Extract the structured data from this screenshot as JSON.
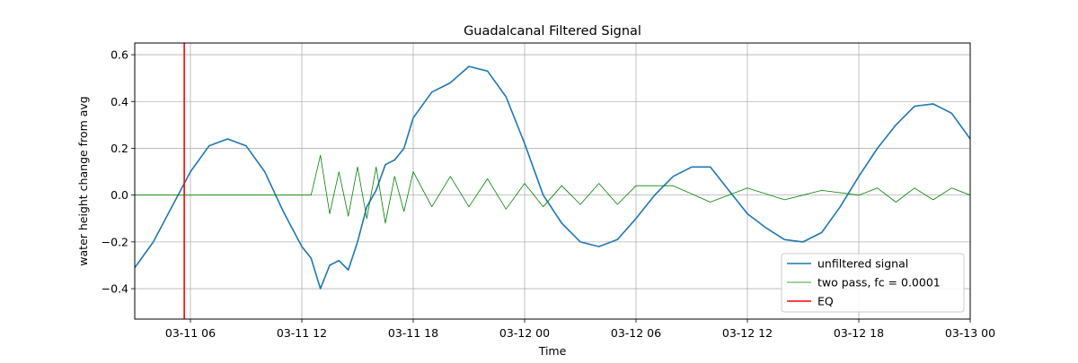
{
  "chart_data": {
    "type": "line",
    "title": "Guadalcanal Filtered Signal",
    "xlabel": "Time",
    "ylabel": "water height change from avg",
    "xlim": [
      "2013-03-11 03:00",
      "2013-03-13 00:00"
    ],
    "ylim": [
      -0.53,
      0.65
    ],
    "x_ticks": [
      "2013-03-11 06:00",
      "2013-03-11 12:00",
      "2013-03-11 18:00",
      "2013-03-12 00:00",
      "2013-03-12 06:00",
      "2013-03-12 12:00",
      "2013-03-12 18:00",
      "2013-03-13 00:00"
    ],
    "x_tick_labels": [
      "03-11 06",
      "03-11 12",
      "03-11 18",
      "03-12 00",
      "03-12 06",
      "03-12 12",
      "03-12 18",
      "03-13 00"
    ],
    "y_ticks": [
      -0.4,
      -0.2,
      0.0,
      0.2,
      0.4,
      0.6
    ],
    "y_tick_labels": [
      "−0.4",
      "−0.2",
      "0.0",
      "0.2",
      "0.4",
      "0.6"
    ],
    "grid": true,
    "legend_position": "lower-right",
    "series": [
      {
        "name": "unfiltered signal",
        "color": "#1f77b4",
        "x": [
          "2013-03-11 03:00",
          "2013-03-11 04:00",
          "2013-03-11 05:00",
          "2013-03-11 06:00",
          "2013-03-11 07:00",
          "2013-03-11 08:00",
          "2013-03-11 09:00",
          "2013-03-11 10:00",
          "2013-03-11 11:00",
          "2013-03-11 12:00",
          "2013-03-11 12:30",
          "2013-03-11 13:00",
          "2013-03-11 13:30",
          "2013-03-11 14:00",
          "2013-03-11 14:30",
          "2013-03-11 15:00",
          "2013-03-11 15:30",
          "2013-03-11 16:00",
          "2013-03-11 16:30",
          "2013-03-11 17:00",
          "2013-03-11 17:30",
          "2013-03-11 18:00",
          "2013-03-11 19:00",
          "2013-03-11 20:00",
          "2013-03-11 21:00",
          "2013-03-11 22:00",
          "2013-03-11 23:00",
          "2013-03-12 00:00",
          "2013-03-12 01:00",
          "2013-03-12 02:00",
          "2013-03-12 03:00",
          "2013-03-12 04:00",
          "2013-03-12 05:00",
          "2013-03-12 06:00",
          "2013-03-12 07:00",
          "2013-03-12 08:00",
          "2013-03-12 09:00",
          "2013-03-12 10:00",
          "2013-03-12 11:00",
          "2013-03-12 12:00",
          "2013-03-12 13:00",
          "2013-03-12 14:00",
          "2013-03-12 15:00",
          "2013-03-12 16:00",
          "2013-03-12 17:00",
          "2013-03-12 18:00",
          "2013-03-12 19:00",
          "2013-03-12 20:00",
          "2013-03-12 21:00",
          "2013-03-12 22:00",
          "2013-03-12 23:00",
          "2013-03-13 00:00"
        ],
        "y": [
          -0.31,
          -0.2,
          -0.05,
          0.1,
          0.21,
          0.24,
          0.21,
          0.1,
          -0.07,
          -0.22,
          -0.27,
          -0.4,
          -0.3,
          -0.28,
          -0.32,
          -0.2,
          -0.05,
          0.02,
          0.13,
          0.15,
          0.2,
          0.33,
          0.44,
          0.48,
          0.55,
          0.53,
          0.42,
          0.22,
          0.0,
          -0.12,
          -0.2,
          -0.22,
          -0.19,
          -0.1,
          0.0,
          0.08,
          0.12,
          0.12,
          0.02,
          -0.08,
          -0.14,
          -0.19,
          -0.2,
          -0.16,
          -0.05,
          0.08,
          0.2,
          0.3,
          0.38,
          0.39,
          0.35,
          0.24
        ]
      },
      {
        "name": "two pass, fc = 0.0001",
        "color": "#008000",
        "x": [
          "2013-03-11 03:00",
          "2013-03-11 06:00",
          "2013-03-11 09:00",
          "2013-03-11 12:00",
          "2013-03-11 12:30",
          "2013-03-11 13:00",
          "2013-03-11 13:30",
          "2013-03-11 14:00",
          "2013-03-11 14:30",
          "2013-03-11 15:00",
          "2013-03-11 15:30",
          "2013-03-11 16:00",
          "2013-03-11 16:30",
          "2013-03-11 17:00",
          "2013-03-11 17:30",
          "2013-03-11 18:00",
          "2013-03-11 19:00",
          "2013-03-11 20:00",
          "2013-03-11 21:00",
          "2013-03-11 22:00",
          "2013-03-11 23:00",
          "2013-03-12 00:00",
          "2013-03-12 01:00",
          "2013-03-12 02:00",
          "2013-03-12 03:00",
          "2013-03-12 04:00",
          "2013-03-12 05:00",
          "2013-03-12 06:00",
          "2013-03-12 08:00",
          "2013-03-12 10:00",
          "2013-03-12 12:00",
          "2013-03-12 14:00",
          "2013-03-12 16:00",
          "2013-03-12 18:00",
          "2013-03-12 19:00",
          "2013-03-12 20:00",
          "2013-03-12 21:00",
          "2013-03-12 22:00",
          "2013-03-12 23:00",
          "2013-03-13 00:00"
        ],
        "y": [
          0.0,
          0.0,
          0.0,
          0.0,
          0.0,
          0.17,
          -0.08,
          0.1,
          -0.09,
          0.12,
          -0.1,
          0.12,
          -0.12,
          0.08,
          -0.07,
          0.1,
          -0.05,
          0.08,
          -0.05,
          0.07,
          -0.06,
          0.05,
          -0.05,
          0.04,
          -0.04,
          0.05,
          -0.04,
          0.04,
          0.04,
          -0.03,
          0.03,
          -0.02,
          0.02,
          0.0,
          0.03,
          -0.03,
          0.03,
          -0.02,
          0.03,
          0.0
        ]
      },
      {
        "name": "EQ",
        "color": "#ff0000",
        "type": "vline",
        "x": "2013-03-11 05:40"
      }
    ]
  }
}
